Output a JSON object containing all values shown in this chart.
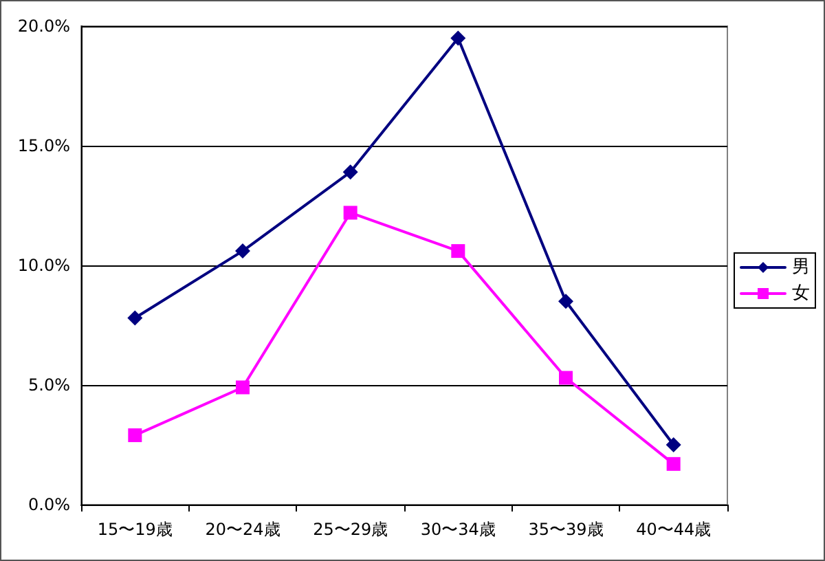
{
  "chart_data": {
    "type": "line",
    "categories": [
      "15〜19歳",
      "20〜24歳",
      "25〜29歳",
      "30〜34歳",
      "35〜39歳",
      "40〜44歳"
    ],
    "series": [
      {
        "name": "男",
        "color": "#000080",
        "marker": "diamond",
        "values": [
          7.8,
          10.6,
          13.9,
          19.5,
          8.5,
          2.5
        ]
      },
      {
        "name": "女",
        "color": "#ff00ff",
        "marker": "square",
        "values": [
          2.9,
          4.9,
          12.2,
          10.6,
          5.3,
          1.7
        ]
      }
    ],
    "ylim": [
      0,
      20
    ],
    "yticks": [
      {
        "value": 0,
        "label": "0.0%"
      },
      {
        "value": 5,
        "label": "5.0%"
      },
      {
        "value": 10,
        "label": "10.0%"
      },
      {
        "value": 15,
        "label": "15.0%"
      },
      {
        "value": 20,
        "label": "20.0%"
      }
    ],
    "grid": "y",
    "legend": "right",
    "line_style": "solid"
  }
}
